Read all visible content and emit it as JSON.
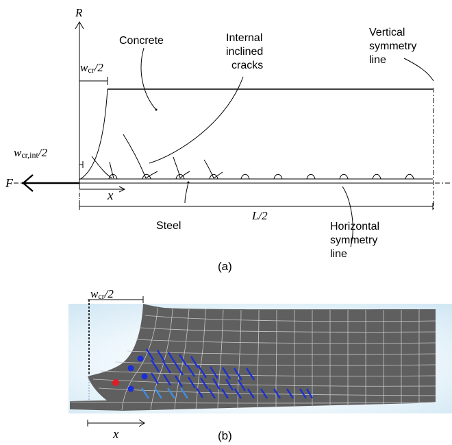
{
  "panel_a": {
    "caption": "(a)",
    "axis_R": "R",
    "force_F": "F",
    "coord_x": "x",
    "w_cr_half": {
      "base": "w",
      "sub": "cr",
      "tail": "/2"
    },
    "w_cr_int_half": {
      "base": "w",
      "sub": "cr,int",
      "tail": "/2"
    },
    "label_concrete": "Concrete",
    "label_cracks": [
      "Internal",
      "inclined",
      "cracks"
    ],
    "label_vertical": [
      "Vertical",
      "symmetry",
      "line"
    ],
    "label_steel": "Steel",
    "label_L_half": "L/2",
    "label_horizontal": [
      "Horizontal",
      "symmetry",
      "line"
    ]
  },
  "panel_b": {
    "caption": "(b)",
    "w_cr_half": {
      "base": "w",
      "sub": "cr",
      "tail": "/2"
    },
    "coord_x": "x"
  },
  "colors": {
    "line": "#000000",
    "mesh_fill": "#5f5f5f",
    "mesh_line": "#c9c9c9",
    "background_glow": "#d6ebf6",
    "crack_blue": "#1a2fd6",
    "crack_light_blue": "#3c8fe8",
    "marker_red": "#e01d24"
  }
}
